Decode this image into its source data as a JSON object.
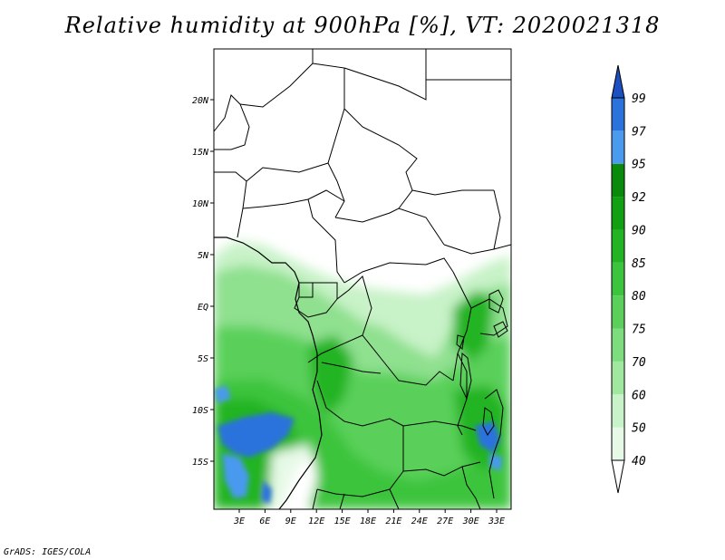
{
  "title": "Relative humidity at 900hPa [%], VT: 2020021318",
  "credit": "GrADS: IGES/COLA",
  "map": {
    "variable": "Relative humidity",
    "level": "900hPa",
    "unit": "%",
    "valid_time": "2020021318",
    "lat_ticks": [
      "20N",
      "15N",
      "10N",
      "5N",
      "EQ",
      "5S",
      "10S",
      "15S"
    ],
    "lon_ticks": [
      "3E",
      "6E",
      "9E",
      "12E",
      "15E",
      "18E",
      "21E",
      "24E",
      "27E",
      "30E",
      "33E"
    ]
  },
  "colorbar": {
    "levels": [
      "40",
      "50",
      "60",
      "70",
      "75",
      "80",
      "85",
      "90",
      "92",
      "95",
      "97",
      "99"
    ],
    "colors": [
      "#ffffff",
      "#e6f9e6",
      "#c8f2c8",
      "#a0e8a0",
      "#7ddc7d",
      "#5ad05a",
      "#3cc43c",
      "#22b422",
      "#12a012",
      "#0a8a0a",
      "#4a9aee",
      "#2a72dc",
      "#1a50c0"
    ]
  }
}
